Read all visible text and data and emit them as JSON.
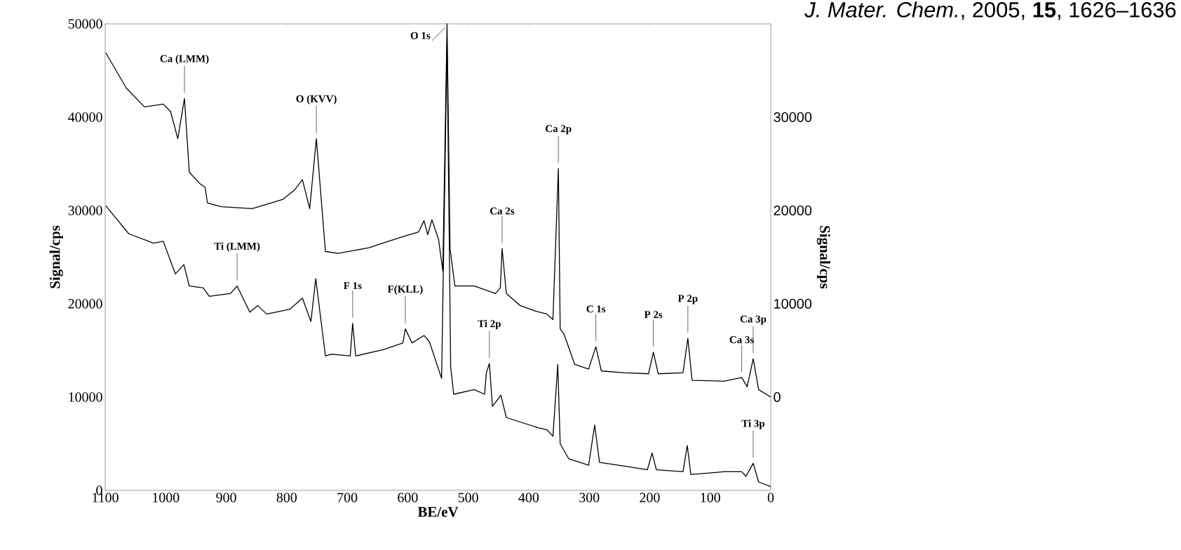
{
  "chart_data": {
    "type": "line",
    "xlabel": "BE/eV",
    "ylabel": "Signal/cps",
    "y2label": "Signal/cps",
    "xlim": [
      1100,
      0
    ],
    "xticks": [
      1100,
      1000,
      900,
      800,
      700,
      600,
      500,
      400,
      300,
      200,
      100,
      0
    ],
    "ylim": [
      0,
      50000
    ],
    "yticks": [
      0,
      10000,
      20000,
      30000,
      40000,
      50000
    ],
    "y2lim": [
      -10000,
      40000
    ],
    "y2ticks": [
      0,
      10000,
      20000,
      30000
    ],
    "series": [
      {
        "color": "#000000",
        "axis": "y2",
        "x": [
          1099,
          1065,
          1035,
          1004,
          992,
          980,
          969,
          961,
          944,
          935,
          931,
          908,
          857,
          806,
          787,
          774,
          762,
          751,
          736,
          715,
          664,
          613,
          582,
          573,
          567,
          560,
          549,
          542,
          535,
          530,
          522,
          490,
          455,
          447,
          444,
          437,
          414,
          388,
          370,
          360,
          351,
          348,
          342,
          324,
          301,
          289,
          280,
          242,
          202,
          194,
          186,
          145,
          137,
          130,
          77,
          48,
          39,
          29,
          20,
          0
        ],
        "values": [
          36900,
          33100,
          31100,
          31400,
          30600,
          27700,
          32000,
          24100,
          22900,
          22500,
          20800,
          20400,
          20200,
          21200,
          22200,
          23300,
          20200,
          27700,
          15600,
          15400,
          16000,
          17100,
          17700,
          18900,
          17400,
          19000,
          16900,
          13500,
          40000,
          15900,
          11900,
          11900,
          11100,
          11700,
          15900,
          11100,
          9800,
          9200,
          8900,
          8300,
          24500,
          7300,
          6800,
          3500,
          3000,
          5400,
          2800,
          2600,
          2500,
          4800,
          2500,
          2600,
          6300,
          1800,
          1700,
          2100,
          1100,
          4100,
          800,
          0
        ]
      },
      {
        "color": "#000000",
        "axis": "y",
        "x": [
          1099,
          1061,
          1020,
          1004,
          984,
          970,
          961,
          938,
          928,
          893,
          882,
          861,
          848,
          833,
          795,
          774,
          760,
          752,
          736,
          726,
          695,
          691,
          686,
          639,
          608,
          604,
          593,
          573,
          564,
          544,
          535,
          529,
          524,
          490,
          473,
          470,
          465,
          460,
          446,
          437,
          384,
          370,
          360,
          352,
          348,
          334,
          301,
          291,
          283,
          242,
          204,
          196,
          189,
          145,
          138,
          132,
          77,
          48,
          41,
          29,
          20,
          0
        ],
        "values": [
          30500,
          27500,
          26500,
          26700,
          23200,
          24200,
          21900,
          21700,
          20800,
          21100,
          21900,
          19100,
          19800,
          18900,
          19400,
          20600,
          18100,
          22700,
          14400,
          14600,
          14400,
          17900,
          14400,
          15100,
          15800,
          17300,
          15800,
          16600,
          15900,
          12000,
          48000,
          13200,
          10300,
          10800,
          10300,
          12600,
          13600,
          9000,
          10200,
          7800,
          6700,
          6500,
          5800,
          13500,
          5000,
          3400,
          2700,
          7000,
          3000,
          2600,
          2200,
          4000,
          2200,
          2000,
          4800,
          1700,
          2000,
          2000,
          1500,
          2900,
          900,
          400
        ]
      }
    ],
    "annotations": [
      {
        "text": "Ca (LMM)",
        "x": 969,
        "y": 42000
      },
      {
        "text": "O (KVV)",
        "x": 751,
        "y": 37700
      },
      {
        "text": "O 1s",
        "x": 535,
        "y": 50000
      },
      {
        "text": "Ca 2s",
        "x": 444,
        "y": 25900
      },
      {
        "text": "Ca 2p",
        "x": 351,
        "y": 34500
      },
      {
        "text": "C 1s",
        "x": 289,
        "y": 15400
      },
      {
        "text": "P 2s",
        "x": 194,
        "y": 14800
      },
      {
        "text": "P 2p",
        "x": 137,
        "y": 16300
      },
      {
        "text": "Ca 3s",
        "x": 48,
        "y": 12100
      },
      {
        "text": "Ca 3p",
        "x": 29,
        "y": 14100
      },
      {
        "text": "Ti (LMM)",
        "x": 882,
        "y": 21900
      },
      {
        "text": "F 1s",
        "x": 691,
        "y": 17900
      },
      {
        "text": "F(KLL)",
        "x": 604,
        "y": 17300
      },
      {
        "text": "Ti 2p",
        "x": 465,
        "y": 13600
      },
      {
        "text": "Ti 3p",
        "x": 29,
        "y": 2900
      },
      "*J. Mater. Chem.*, 2005, **15**, 1626–1636"
    ]
  }
}
